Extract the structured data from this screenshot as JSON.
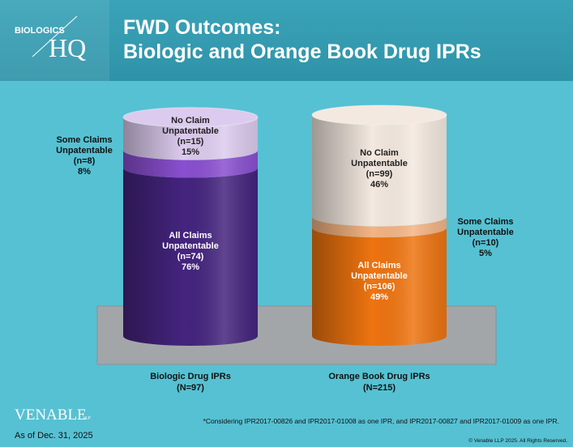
{
  "header": {
    "logo_top": "BIOLOGICS",
    "logo_main": "HQ",
    "title_line1": "FWD Outcomes:",
    "title_line2": "Biologic and Orange Book Drug IPRs"
  },
  "chart_data": {
    "type": "stacked_cylinder",
    "categories": [
      "Biologic Drug IPRs",
      "Orange Book Drug IPRs"
    ],
    "category_counts": [
      "(N=97)",
      "(N=215)"
    ],
    "ylim": [
      0,
      100
    ],
    "series": [
      {
        "name": "All Claims Unpatentable",
        "values": [
          76,
          49
        ],
        "value_labels": [
          "76%",
          "49%"
        ],
        "count_labels": [
          "(n=74)",
          "(n=106)"
        ],
        "colors": [
          "#44247e",
          "#ee7410"
        ]
      },
      {
        "name": "Some Claims Unpatentable",
        "values": [
          8,
          5
        ],
        "value_labels": [
          "8%",
          "5%"
        ],
        "count_labels": [
          "(n=8)",
          "(n=10)"
        ],
        "colors": [
          "#8a4fd0",
          "#f4b483"
        ]
      },
      {
        "name": "No Claim Unpatentable",
        "values": [
          15,
          46
        ],
        "value_labels": [
          "15%",
          "46%"
        ],
        "count_labels": [
          "(n=15)",
          "(n=99)"
        ],
        "colors": [
          "#dccbee",
          "#f4e9e0"
        ]
      }
    ]
  },
  "footer": {
    "firm": "VENABLE",
    "firm_suffix": "LLP",
    "as_of": "As of Dec. 31, 2025",
    "footnote": "*Considering IPR2017-00826 and IPR2017-01008 as one IPR, and IPR2017-00827 and IPR2017-01009 as one IPR.",
    "copyright": "© Venable LLP 2025. All Rights Reserved."
  }
}
